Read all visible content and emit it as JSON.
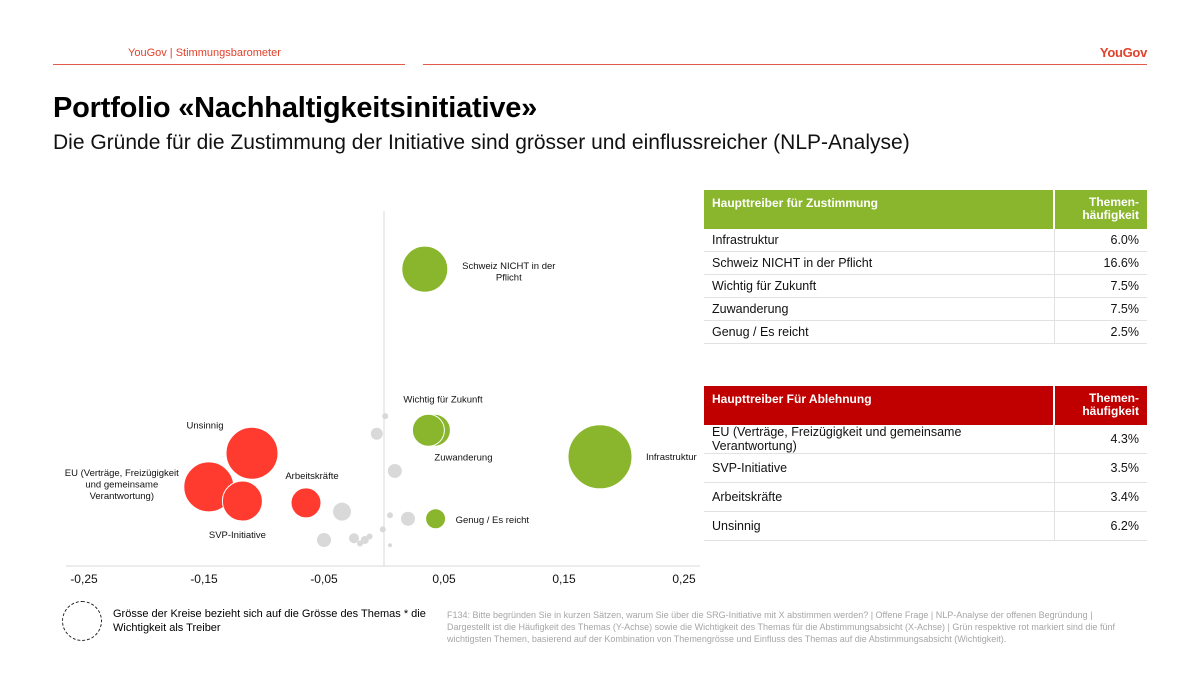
{
  "header": {
    "left_label": "YouGov | Stimmungsbarometer",
    "logo": "YouGov"
  },
  "title": "Portfolio «Nachhaltigkeitsinitiative»",
  "subtitle": "Die Gründe für die Zustimmung der Initiative sind grösser und einflussreicher (NLP-Analyse)",
  "chart_data": {
    "type": "scatter",
    "title": "",
    "xlabel": "",
    "ylabel": "",
    "xlim": [
      -0.25,
      0.25
    ],
    "x_ticks": [
      "-0,25",
      "-0,15",
      "-0,05",
      "0,05",
      "0,15",
      "0,25"
    ],
    "y_axis_line_at_x": 0,
    "size_meaning": "Grösse der Kreise bezieht sich auf die Grösse des Themas * die Wichtigkeit als Treiber",
    "colors": {
      "approval": "#8ab62e",
      "rejection": "#ff3b30",
      "other": "#d9d9d9"
    },
    "points": [
      {
        "label": "Schweiz NICHT in der Pflicht",
        "x": 0.034,
        "y": 16.6,
        "r": 23,
        "group": "approval"
      },
      {
        "label": "Wichtig für Zukunft",
        "x": 0.042,
        "y": 7.5,
        "r": 16,
        "group": "approval"
      },
      {
        "label": "Zuwanderung",
        "x": 0.037,
        "y": 7.5,
        "r": 16,
        "group": "approval"
      },
      {
        "label": "Infrastruktur",
        "x": 0.18,
        "y": 6.0,
        "r": 32,
        "group": "approval"
      },
      {
        "label": "Genug / Es reicht",
        "x": 0.043,
        "y": 2.5,
        "r": 10,
        "group": "approval"
      },
      {
        "label": "Unsinnig",
        "x": -0.11,
        "y": 6.2,
        "r": 26,
        "group": "rejection"
      },
      {
        "label": "EU (Verträge, Freizügigkeit und gemeinsame Verantwortung)",
        "x": -0.146,
        "y": 4.3,
        "r": 25,
        "group": "rejection"
      },
      {
        "label": "SVP-Initiative",
        "x": -0.118,
        "y": 3.5,
        "r": 20,
        "group": "rejection"
      },
      {
        "label": "Arbeitskräfte",
        "x": -0.065,
        "y": 3.4,
        "r": 15,
        "group": "rejection"
      },
      {
        "label": "",
        "x": 0.001,
        "y": 8.3,
        "r": 3,
        "group": "other"
      },
      {
        "label": "",
        "x": -0.006,
        "y": 7.3,
        "r": 6,
        "group": "other"
      },
      {
        "label": "",
        "x": 0.009,
        "y": 5.2,
        "r": 7,
        "group": "other"
      },
      {
        "label": "",
        "x": -0.035,
        "y": 2.9,
        "r": 9,
        "group": "other"
      },
      {
        "label": "",
        "x": 0.02,
        "y": 2.5,
        "r": 7,
        "group": "other"
      },
      {
        "label": "",
        "x": 0.005,
        "y": 2.7,
        "r": 3,
        "group": "other"
      },
      {
        "label": "",
        "x": -0.001,
        "y": 1.9,
        "r": 3,
        "group": "other"
      },
      {
        "label": "",
        "x": -0.05,
        "y": 1.3,
        "r": 7,
        "group": "other"
      },
      {
        "label": "",
        "x": -0.025,
        "y": 1.4,
        "r": 5,
        "group": "other"
      },
      {
        "label": "",
        "x": -0.02,
        "y": 1.1,
        "r": 3,
        "group": "other"
      },
      {
        "label": "",
        "x": -0.016,
        "y": 1.3,
        "r": 4,
        "group": "other"
      },
      {
        "label": "",
        "x": -0.012,
        "y": 1.5,
        "r": 3,
        "group": "other"
      },
      {
        "label": "",
        "x": 0.005,
        "y": 1.0,
        "r": 2,
        "group": "other"
      }
    ]
  },
  "table_approval": {
    "header_theme": "Haupttreiber für Zustimmung",
    "header_freq_1": "Themen-",
    "header_freq_2": "häufigkeit",
    "rows": [
      {
        "theme": "Infrastruktur",
        "freq": "6.0%"
      },
      {
        "theme": "Schweiz NICHT in der Pflicht",
        "freq": "16.6%"
      },
      {
        "theme": "Wichtig für Zukunft",
        "freq": "7.5%"
      },
      {
        "theme": "Zuwanderung",
        "freq": "7.5%"
      },
      {
        "theme": "Genug / Es reicht",
        "freq": "2.5%"
      }
    ]
  },
  "table_rejection": {
    "header_theme": "Haupttreiber Für Ablehnung",
    "header_freq_1": "Themen-",
    "header_freq_2": "häufigkeit",
    "rows": [
      {
        "theme": "EU (Verträge, Freizügigkeit und gemeinsame Verantwortung)",
        "freq": "4.3%"
      },
      {
        "theme": "SVP-Initiative",
        "freq": "3.5%"
      },
      {
        "theme": "Arbeitskräfte",
        "freq": "3.4%"
      },
      {
        "theme": "Unsinnig",
        "freq": "6.2%"
      }
    ]
  },
  "legend_text": "Grösse der Kreise bezieht sich auf die Grösse des Themas * die Wichtigkeit als Treiber",
  "footnote": "F134: Bitte begründen Sie in kurzen Sätzen, warum Sie über die SRG-Initiative mit X abstimmen werden? | Offene Frage | NLP-Analyse der offenen Begründung | Dargestellt ist die Häufigkeit des Themas (Y-Achse) sowie die Wichtigkeit des Themas für die Abstimmungsabsicht (X-Achse) | Grün respektive rot markiert sind die fünf wichtigsten Themen, basierend auf der Kombination von Themengrösse und Einfluss des Themas auf die Abstimmungsabsicht (Wichtigkeit)."
}
